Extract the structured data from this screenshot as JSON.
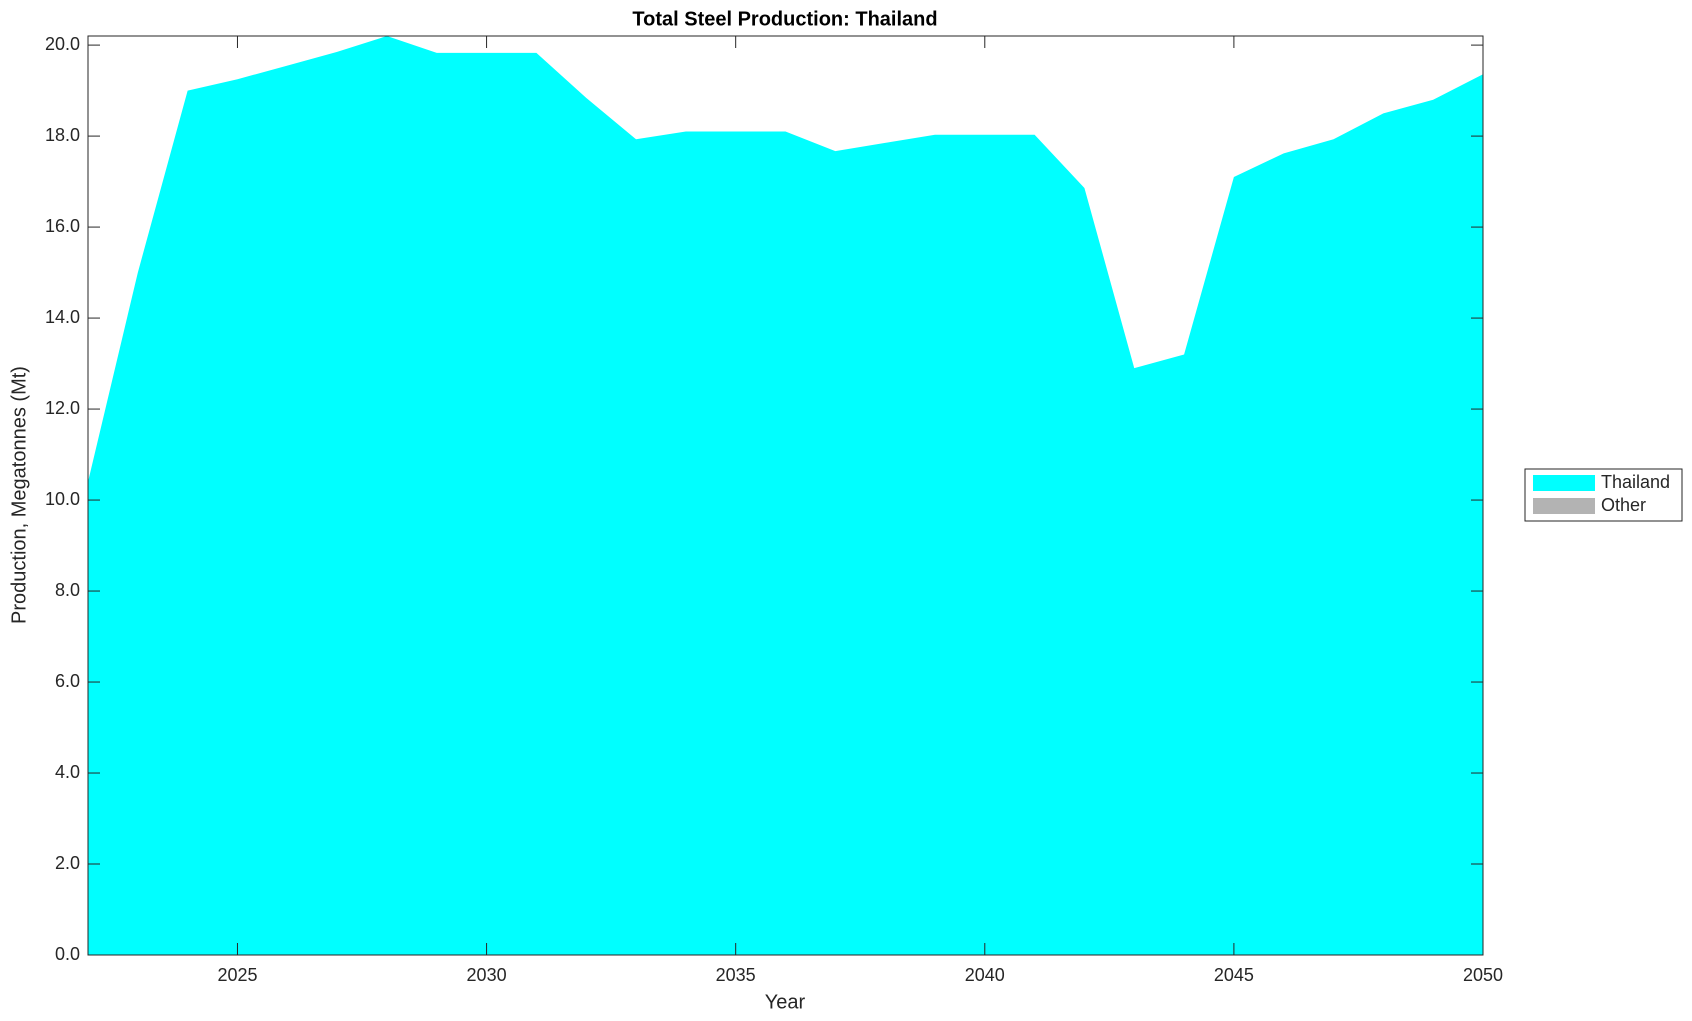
{
  "chart_data": {
    "type": "area",
    "stacked": true,
    "title": "Total Steel Production: Thailand",
    "x_label": "Year",
    "y_label": "Production, Megatonnes (Mt)",
    "x": [
      2022,
      2023,
      2024,
      2025,
      2026,
      2027,
      2028,
      2029,
      2030,
      2031,
      2032,
      2033,
      2034,
      2035,
      2036,
      2037,
      2038,
      2039,
      2040,
      2041,
      2042,
      2043,
      2044,
      2045,
      2046,
      2047,
      2048,
      2049,
      2050
    ],
    "series": [
      {
        "name": "Thailand",
        "color": "#00ffff",
        "values": [
          10.4,
          15.0,
          19.0,
          19.25,
          19.55,
          19.85,
          20.2,
          19.83,
          19.83,
          19.83,
          18.84,
          17.93,
          18.1,
          18.1,
          18.1,
          17.67,
          17.85,
          18.03,
          18.03,
          18.03,
          16.86,
          12.9,
          13.2,
          17.1,
          17.62,
          17.93,
          18.5,
          18.8,
          19.36
        ]
      },
      {
        "name": "Other",
        "color": "#b3b3b3",
        "values": [
          0,
          0,
          0,
          0,
          0,
          0,
          0,
          0,
          0,
          0,
          0,
          0,
          0,
          0,
          0,
          0,
          0,
          0,
          0,
          0,
          0,
          0,
          0,
          0,
          0,
          0,
          0,
          0,
          0
        ]
      }
    ],
    "xlim": [
      2022,
      2050
    ],
    "ylim": [
      0,
      20.2
    ],
    "xticks": [
      2025,
      2030,
      2035,
      2040,
      2045,
      2050
    ],
    "yticks": [
      {
        "value": 0,
        "label": "0.0"
      },
      {
        "value": 2,
        "label": "2.0"
      },
      {
        "value": 4,
        "label": "4.0"
      },
      {
        "value": 6,
        "label": "6.0"
      },
      {
        "value": 8,
        "label": "8.0"
      },
      {
        "value": 10,
        "label": "10.0"
      },
      {
        "value": 12,
        "label": "12.0"
      },
      {
        "value": 14,
        "label": "14.0"
      },
      {
        "value": 16,
        "label": "16.0"
      },
      {
        "value": 18,
        "label": "18.0"
      },
      {
        "value": 20,
        "label": "20.0"
      }
    ],
    "grid": false,
    "legend": "outside-right"
  }
}
